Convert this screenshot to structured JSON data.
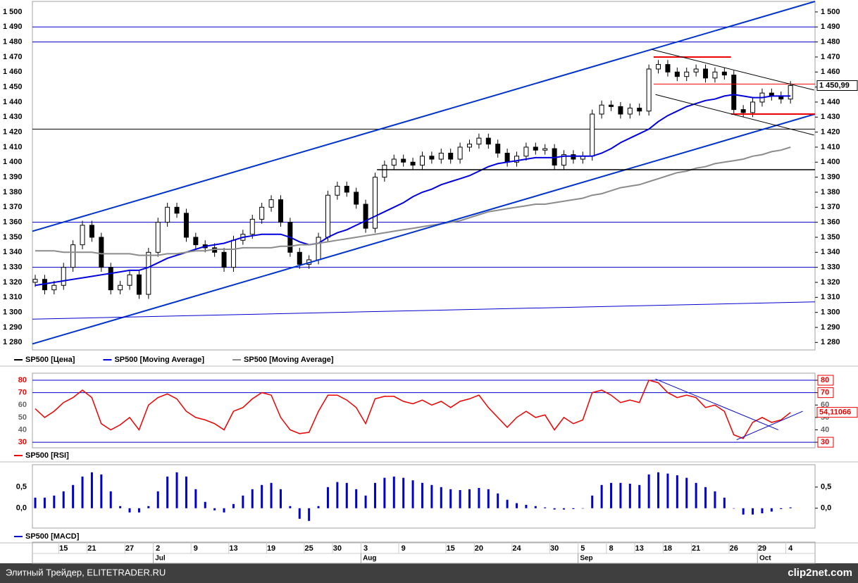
{
  "chart_data": [
    {
      "type": "candlestick",
      "name": "SP500 [Цена]",
      "color": "#000000",
      "color_up": "#ffffff",
      "color_down": "#000000",
      "open": [
        1320,
        1322,
        1315,
        1318,
        1330,
        1345,
        1358,
        1350,
        1330,
        1315,
        1318,
        1325,
        1312,
        1340,
        1360,
        1370,
        1366,
        1350,
        1345,
        1343,
        1340,
        1330,
        1348,
        1352,
        1362,
        1370,
        1375,
        1360,
        1340,
        1332,
        1335,
        1350,
        1378,
        1384,
        1380,
        1372,
        1356,
        1390,
        1398,
        1402,
        1400,
        1398,
        1404,
        1402,
        1406,
        1402,
        1410,
        1412,
        1416,
        1412,
        1406,
        1400,
        1404,
        1410,
        1408,
        1409,
        1398,
        1405,
        1402,
        1404,
        1432,
        1438,
        1437,
        1432,
        1436,
        1434,
        1462,
        1465,
        1460,
        1457,
        1460,
        1462,
        1456,
        1460,
        1458,
        1435,
        1433,
        1440,
        1446,
        1444,
        1442
      ],
      "high": [
        1325,
        1325,
        1321,
        1333,
        1348,
        1361,
        1361,
        1353,
        1333,
        1321,
        1328,
        1328,
        1343,
        1363,
        1373,
        1373,
        1369,
        1353,
        1348,
        1346,
        1343,
        1351,
        1355,
        1365,
        1373,
        1378,
        1378,
        1363,
        1343,
        1338,
        1353,
        1381,
        1387,
        1387,
        1383,
        1375,
        1393,
        1401,
        1405,
        1405,
        1403,
        1407,
        1407,
        1409,
        1409,
        1413,
        1415,
        1419,
        1419,
        1415,
        1409,
        1407,
        1413,
        1413,
        1412,
        1412,
        1408,
        1408,
        1407,
        1435,
        1441,
        1441,
        1440,
        1439,
        1439,
        1465,
        1468,
        1468,
        1463,
        1463,
        1465,
        1465,
        1463,
        1463,
        1461,
        1438,
        1443,
        1449,
        1449,
        1447,
        1454
      ],
      "low": [
        1317,
        1312,
        1312,
        1315,
        1327,
        1342,
        1347,
        1327,
        1312,
        1312,
        1315,
        1309,
        1309,
        1337,
        1357,
        1363,
        1347,
        1342,
        1340,
        1337,
        1327,
        1327,
        1345,
        1349,
        1359,
        1367,
        1357,
        1337,
        1329,
        1329,
        1332,
        1347,
        1375,
        1377,
        1369,
        1353,
        1353,
        1387,
        1395,
        1397,
        1395,
        1395,
        1399,
        1399,
        1399,
        1399,
        1407,
        1409,
        1409,
        1403,
        1397,
        1397,
        1401,
        1405,
        1405,
        1395,
        1395,
        1399,
        1399,
        1401,
        1429,
        1434,
        1429,
        1429,
        1431,
        1431,
        1459,
        1457,
        1454,
        1454,
        1457,
        1453,
        1453,
        1455,
        1432,
        1430,
        1430,
        1437,
        1441,
        1439,
        1439
      ],
      "close": [
        1322,
        1315,
        1318,
        1330,
        1345,
        1358,
        1350,
        1330,
        1315,
        1318,
        1325,
        1312,
        1340,
        1360,
        1370,
        1366,
        1350,
        1345,
        1343,
        1340,
        1330,
        1348,
        1352,
        1362,
        1370,
        1375,
        1360,
        1340,
        1332,
        1335,
        1350,
        1378,
        1384,
        1380,
        1372,
        1356,
        1390,
        1398,
        1402,
        1400,
        1398,
        1404,
        1402,
        1406,
        1402,
        1410,
        1412,
        1416,
        1412,
        1406,
        1400,
        1404,
        1410,
        1408,
        1409,
        1398,
        1405,
        1402,
        1404,
        1432,
        1438,
        1437,
        1432,
        1436,
        1434,
        1462,
        1465,
        1460,
        1457,
        1460,
        1462,
        1456,
        1460,
        1458,
        1435,
        1433,
        1440,
        1446,
        1444,
        1442,
        1451
      ],
      "series": [
        {
          "name": "SP500 [Moving Average]",
          "color": "#0000dd",
          "values": [
            1318,
            1319,
            1320,
            1321,
            1322,
            1323,
            1324,
            1325,
            1326,
            1327,
            1328,
            1328,
            1330,
            1333,
            1336,
            1338,
            1340,
            1342,
            1344,
            1345,
            1346,
            1348,
            1350,
            1351,
            1352,
            1352,
            1352,
            1350,
            1347,
            1345,
            1346,
            1350,
            1353,
            1355,
            1358,
            1361,
            1364,
            1367,
            1370,
            1373,
            1377,
            1380,
            1382,
            1385,
            1387,
            1389,
            1391,
            1394,
            1397,
            1399,
            1400,
            1401,
            1402,
            1403,
            1403,
            1403,
            1404,
            1404,
            1404,
            1404,
            1406,
            1409,
            1413,
            1416,
            1419,
            1422,
            1427,
            1431,
            1434,
            1437,
            1439,
            1441,
            1442,
            1444,
            1445,
            1444,
            1443,
            1443,
            1444,
            1444,
            1444
          ]
        },
        {
          "name": "SP500 [Moving Average]",
          "color": "#8c8c8c",
          "values": [
            1341,
            1341,
            1341,
            1340,
            1340,
            1340,
            1340,
            1339,
            1339,
            1339,
            1339,
            1338,
            1338,
            1338,
            1339,
            1339,
            1340,
            1341,
            1341,
            1342,
            1342,
            1342,
            1343,
            1343,
            1343,
            1343,
            1344,
            1344,
            1345,
            1345,
            1346,
            1347,
            1348,
            1349,
            1350,
            1351,
            1352,
            1353,
            1354,
            1355,
            1356,
            1357,
            1358,
            1359,
            1360,
            1361,
            1363,
            1365,
            1367,
            1368,
            1369,
            1370,
            1371,
            1372,
            1372,
            1373,
            1374,
            1375,
            1376,
            1378,
            1379,
            1381,
            1383,
            1384,
            1385,
            1387,
            1389,
            1391,
            1393,
            1394,
            1396,
            1397,
            1399,
            1400,
            1401,
            1402,
            1404,
            1405,
            1407,
            1408,
            1410
          ]
        }
      ],
      "ylim": [
        1275,
        1507
      ],
      "yticks": [
        {
          "value": 1280,
          "label": "1 280"
        },
        {
          "value": 1290,
          "label": "1 290"
        },
        {
          "value": 1300,
          "label": "1 300"
        },
        {
          "value": 1310,
          "label": "1 310"
        },
        {
          "value": 1320,
          "label": "1 320"
        },
        {
          "value": 1330,
          "label": "1 330"
        },
        {
          "value": 1340,
          "label": "1 340"
        },
        {
          "value": 1350,
          "label": "1 350"
        },
        {
          "value": 1360,
          "label": "1 360"
        },
        {
          "value": 1370,
          "label": "1 370"
        },
        {
          "value": 1380,
          "label": "1 380"
        },
        {
          "value": 1390,
          "label": "1 390"
        },
        {
          "value": 1400,
          "label": "1 400"
        },
        {
          "value": 1410,
          "label": "1 410"
        },
        {
          "value": 1420,
          "label": "1 420"
        },
        {
          "value": 1430,
          "label": "1 430"
        },
        {
          "value": 1440,
          "label": "1 440"
        },
        {
          "value": 1450,
          "label": "1 450"
        },
        {
          "value": 1460,
          "label": "1 460"
        },
        {
          "value": 1470,
          "label": "1 470"
        },
        {
          "value": 1480,
          "label": "1 480"
        },
        {
          "value": 1490,
          "label": "1 490"
        },
        {
          "value": 1500,
          "label": "1 500"
        }
      ],
      "hlines": [
        {
          "value": 1490,
          "color": "#0000cc"
        },
        {
          "value": 1480,
          "color": "#0000cc"
        },
        {
          "value": 1360,
          "color": "#0000cc"
        },
        {
          "value": 1330,
          "color": "#0000cc"
        },
        {
          "value": 1422,
          "color": "#000000"
        }
      ],
      "lines": [
        {
          "from": [
            -0.3,
            1354
          ],
          "to": [
            82.6,
            1507
          ],
          "color": "#0033cc",
          "width": 2
        },
        {
          "from": [
            -0.3,
            1279
          ],
          "to": [
            82.6,
            1432
          ],
          "color": "#0033cc",
          "width": 2
        },
        {
          "from": [
            -0.3,
            1295.5
          ],
          "to": [
            82.6,
            1307
          ],
          "color": "#0000cc",
          "width": 1
        },
        {
          "from": [
            36.2,
            1395
          ],
          "to": [
            82.6,
            1395
          ],
          "color": "#000000",
          "width": 1.5
        },
        {
          "from": [
            65.5,
            1470
          ],
          "to": [
            73.7,
            1470
          ],
          "color": "#ee0000",
          "width": 2
        },
        {
          "from": [
            65.5,
            1452
          ],
          "to": [
            82.6,
            1452
          ],
          "color": "#ee0000",
          "width": 1
        },
        {
          "from": [
            73.7,
            1432
          ],
          "to": [
            82.6,
            1432
          ],
          "color": "#ee0000",
          "width": 2
        },
        {
          "from": [
            65.3,
            1475
          ],
          "to": [
            82.5,
            1448
          ],
          "color": "#000000",
          "width": 1
        },
        {
          "from": [
            65.7,
            1445
          ],
          "to": [
            82.5,
            1418
          ],
          "color": "#000000",
          "width": 1
        }
      ],
      "last_value": {
        "value": 1450.99,
        "label": "1 450,99"
      }
    },
    {
      "type": "line",
      "series": [
        {
          "name": "SP500 [RSI]",
          "color": "#ee0000",
          "values": [
            57,
            50,
            55,
            62,
            66,
            72,
            66,
            45,
            40,
            44,
            50,
            40,
            60,
            66,
            69,
            65,
            55,
            50,
            48,
            45,
            40,
            55,
            58,
            65,
            70,
            68,
            50,
            40,
            37,
            38,
            55,
            68,
            68,
            64,
            58,
            45,
            65,
            67,
            67,
            63,
            61,
            64,
            60,
            63,
            58,
            63,
            65,
            68,
            58,
            50,
            42,
            50,
            55,
            50,
            52,
            40,
            50,
            45,
            48,
            70,
            72,
            68,
            62,
            64,
            62,
            80,
            78,
            70,
            66,
            68,
            66,
            58,
            60,
            55,
            36,
            33,
            46,
            50,
            46,
            48,
            54
          ]
        }
      ],
      "ylim": [
        25.5,
        85.7
      ],
      "yticks": [
        30,
        40,
        50,
        60,
        70,
        80
      ],
      "hlines": [
        {
          "value": 80,
          "color": "#0000cc"
        },
        {
          "value": 70,
          "color": "#0000cc"
        },
        {
          "value": 30,
          "color": "#0000cc"
        }
      ],
      "lines": [
        {
          "from": [
            65.7,
            81
          ],
          "to": [
            78.7,
            40
          ],
          "color": "#0000cc",
          "width": 1
        },
        {
          "from": [
            74.3,
            32
          ],
          "to": [
            81.3,
            55
          ],
          "color": "#0000cc",
          "width": 1
        }
      ],
      "last_value": {
        "value": 54.11066,
        "label": "54,11066"
      }
    },
    {
      "type": "bar",
      "series": [
        {
          "name": "SP500 [MACD]",
          "color": "#0000cc",
          "values": [
            0.25,
            0.25,
            0.3,
            0.4,
            0.55,
            0.75,
            0.85,
            0.8,
            0.4,
            0.05,
            -0.1,
            -0.1,
            0.05,
            0.4,
            0.75,
            0.85,
            0.75,
            0.45,
            0.15,
            -0.05,
            -0.1,
            0.1,
            0.3,
            0.45,
            0.55,
            0.6,
            0.45,
            0.05,
            -0.25,
            -0.3,
            0.05,
            0.5,
            0.62,
            0.6,
            0.45,
            0.3,
            0.6,
            0.72,
            0.75,
            0.72,
            0.66,
            0.6,
            0.55,
            0.5,
            0.45,
            0.43,
            0.45,
            0.48,
            0.45,
            0.35,
            0.2,
            0.12,
            0.08,
            0.05,
            0.02,
            -0.03,
            -0.03,
            -0.02,
            0,
            0.3,
            0.55,
            0.6,
            0.6,
            0.58,
            0.55,
            0.8,
            0.85,
            0.82,
            0.78,
            0.72,
            0.6,
            0.5,
            0.4,
            0.25,
            0,
            -0.15,
            -0.15,
            -0.12,
            -0.08,
            -0.02,
            0.02
          ]
        }
      ],
      "ylim": [
        -0.47,
        1.03
      ],
      "yticks": [
        {
          "value": 0,
          "label": "0,0"
        },
        {
          "value": 0.5,
          "label": "0,5"
        }
      ]
    }
  ],
  "x_axis": {
    "xlim": [
      -0.3,
      82.6
    ],
    "days": [
      null,
      null,
      null,
      "15",
      null,
      null,
      "21",
      null,
      null,
      null,
      "27",
      null,
      null,
      "2",
      null,
      null,
      null,
      "9",
      null,
      null,
      null,
      "13",
      null,
      null,
      null,
      "19",
      null,
      null,
      null,
      "25",
      null,
      null,
      "30",
      null,
      null,
      "3",
      null,
      null,
      null,
      "9",
      null,
      null,
      null,
      null,
      "15",
      null,
      null,
      "20",
      null,
      null,
      null,
      "24",
      null,
      null,
      null,
      "30",
      null,
      null,
      "5",
      null,
      null,
      "8",
      null,
      null,
      "13",
      null,
      null,
      "18",
      null,
      null,
      "21",
      null,
      null,
      null,
      "26",
      null,
      null,
      "29",
      null,
      null,
      "4"
    ],
    "months": [
      null,
      null,
      null,
      null,
      null,
      null,
      null,
      null,
      null,
      null,
      null,
      null,
      null,
      "Jul",
      null,
      null,
      null,
      null,
      null,
      null,
      null,
      null,
      null,
      null,
      null,
      null,
      null,
      null,
      null,
      null,
      null,
      null,
      null,
      null,
      null,
      "Aug",
      null,
      null,
      null,
      null,
      null,
      null,
      null,
      null,
      null,
      null,
      null,
      null,
      null,
      null,
      null,
      null,
      null,
      null,
      null,
      null,
      null,
      null,
      "Sep",
      null,
      null,
      null,
      null,
      null,
      null,
      null,
      null,
      null,
      null,
      null,
      null,
      null,
      null,
      null,
      null,
      null,
      null,
      "Oct",
      null,
      null,
      null
    ]
  },
  "footer": {
    "source": "Элитный Трейдер, ELITETRADER.RU",
    "logo": "clip2net.com"
  }
}
